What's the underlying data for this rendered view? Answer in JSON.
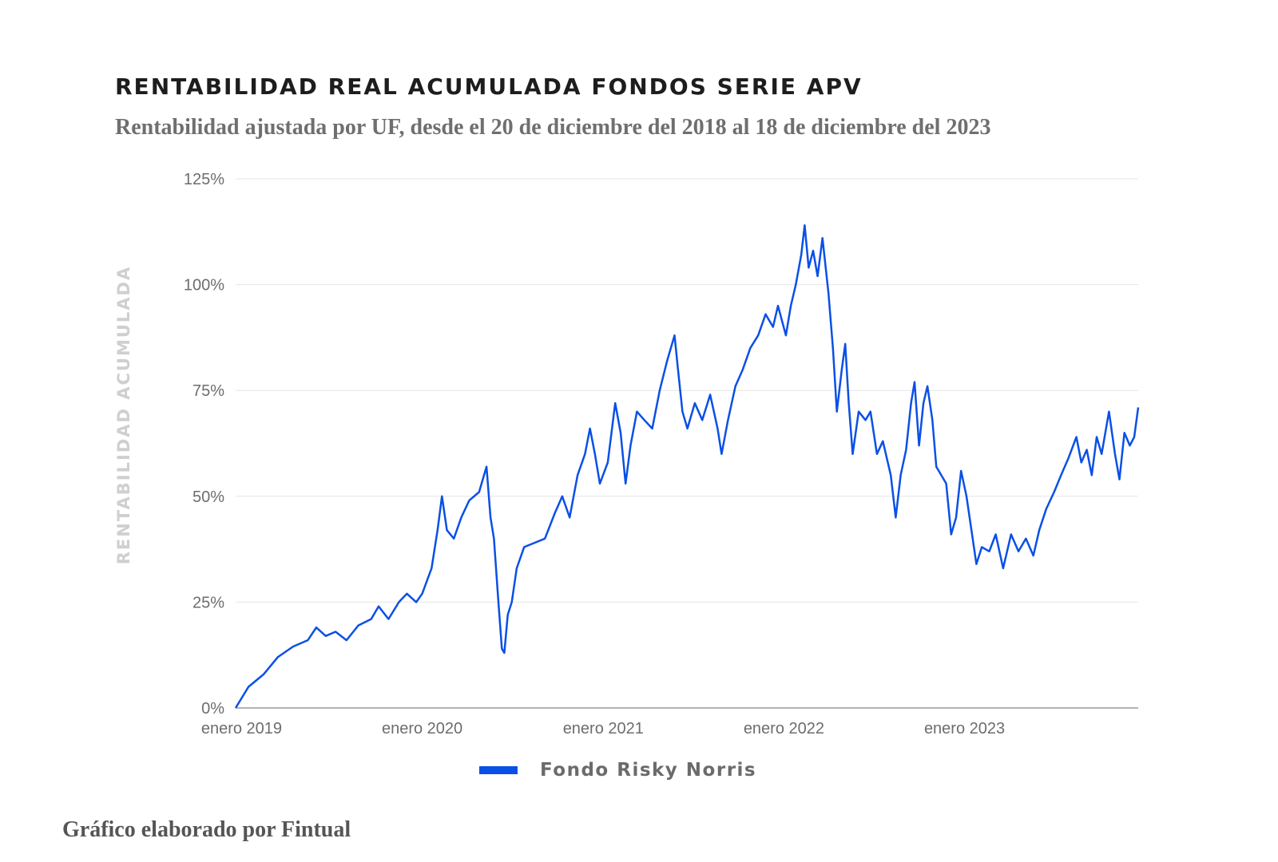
{
  "header": {
    "title": "RENTABILIDAD REAL ACUMULADA FONDOS SERIE APV",
    "subtitle": "Rentabilidad ajustada por UF, desde el 20 de diciembre del 2018 al 18 de diciembre del 2023"
  },
  "footer": {
    "credit": "Gráfico elaborado por Fintual"
  },
  "colors": {
    "series": "#0a50e6",
    "grid": "#e6e6e6",
    "axis": "#9a9a9a"
  },
  "chart_data": {
    "type": "line",
    "title": "RENTABILIDAD REAL ACUMULADA FONDOS SERIE APV",
    "subtitle": "Rentabilidad ajustada por UF, desde el 20 de diciembre del 2018 al 18 de diciembre del 2023",
    "ylabel": "RENTABILIDAD ACUMULADA",
    "xlabel": "",
    "ylim": [
      0,
      125
    ],
    "yticks": [
      0,
      25,
      50,
      75,
      100,
      125
    ],
    "ytick_labels": [
      "0%",
      "25%",
      "50%",
      "75%",
      "100%",
      "125%"
    ],
    "xlim": [
      "2018-12-20",
      "2023-12-18"
    ],
    "xticks": [
      "2019-01-01",
      "2020-01-01",
      "2021-01-01",
      "2022-01-01",
      "2023-01-01"
    ],
    "xtick_labels": [
      "enero 2019",
      "enero 2020",
      "enero 2021",
      "enero 2022",
      "enero 2023"
    ],
    "grid": true,
    "legend_position": "bottom",
    "series": [
      {
        "name": "Fondo Risky Norris",
        "color": "#0a50e6",
        "points": [
          [
            "2018-12-20",
            0
          ],
          [
            "2019-01-15",
            5
          ],
          [
            "2019-02-15",
            8
          ],
          [
            "2019-03-15",
            12
          ],
          [
            "2019-04-15",
            14.5
          ],
          [
            "2019-05-15",
            16
          ],
          [
            "2019-06-01",
            19
          ],
          [
            "2019-06-20",
            17
          ],
          [
            "2019-07-10",
            18
          ],
          [
            "2019-08-01",
            16
          ],
          [
            "2019-08-25",
            19.5
          ],
          [
            "2019-09-20",
            21
          ],
          [
            "2019-10-05",
            24
          ],
          [
            "2019-10-25",
            21
          ],
          [
            "2019-11-15",
            25
          ],
          [
            "2019-12-01",
            27
          ],
          [
            "2019-12-20",
            25
          ],
          [
            "2020-01-01",
            27
          ],
          [
            "2020-01-20",
            33
          ],
          [
            "2020-02-01",
            42
          ],
          [
            "2020-02-10",
            50
          ],
          [
            "2020-02-20",
            42
          ],
          [
            "2020-03-05",
            40
          ],
          [
            "2020-03-20",
            45
          ],
          [
            "2020-04-05",
            49
          ],
          [
            "2020-04-25",
            51
          ],
          [
            "2020-05-10",
            57
          ],
          [
            "2020-05-18",
            45
          ],
          [
            "2020-05-25",
            40
          ],
          [
            "2020-06-03",
            25
          ],
          [
            "2020-06-10",
            14
          ],
          [
            "2020-06-15",
            13
          ],
          [
            "2020-06-22",
            22
          ],
          [
            "2020-06-30",
            25
          ],
          [
            "2020-07-10",
            33
          ],
          [
            "2020-07-25",
            38
          ],
          [
            "2020-08-15",
            39
          ],
          [
            "2020-09-05",
            40
          ],
          [
            "2020-09-25",
            46
          ],
          [
            "2020-10-10",
            50
          ],
          [
            "2020-10-25",
            45
          ],
          [
            "2020-11-10",
            55
          ],
          [
            "2020-11-25",
            60
          ],
          [
            "2020-12-05",
            66
          ],
          [
            "2020-12-15",
            60
          ],
          [
            "2020-12-25",
            53
          ],
          [
            "2021-01-10",
            58
          ],
          [
            "2021-01-25",
            72
          ],
          [
            "2021-02-05",
            65
          ],
          [
            "2021-02-15",
            53
          ],
          [
            "2021-02-25",
            62
          ],
          [
            "2021-03-10",
            70
          ],
          [
            "2021-03-25",
            68
          ],
          [
            "2021-04-10",
            66
          ],
          [
            "2021-04-25",
            75
          ],
          [
            "2021-05-10",
            82
          ],
          [
            "2021-05-25",
            88
          ],
          [
            "2021-06-01",
            80
          ],
          [
            "2021-06-10",
            70
          ],
          [
            "2021-06-20",
            66
          ],
          [
            "2021-07-05",
            72
          ],
          [
            "2021-07-20",
            68
          ],
          [
            "2021-08-05",
            74
          ],
          [
            "2021-08-20",
            66
          ],
          [
            "2021-08-28",
            60
          ],
          [
            "2021-09-10",
            68
          ],
          [
            "2021-09-25",
            76
          ],
          [
            "2021-10-10",
            80
          ],
          [
            "2021-10-25",
            85
          ],
          [
            "2021-11-10",
            88
          ],
          [
            "2021-11-25",
            93
          ],
          [
            "2021-12-10",
            90
          ],
          [
            "2021-12-20",
            95
          ],
          [
            "2022-01-05",
            88
          ],
          [
            "2022-01-15",
            95
          ],
          [
            "2022-01-25",
            100
          ],
          [
            "2022-02-05",
            107
          ],
          [
            "2022-02-12",
            114
          ],
          [
            "2022-02-20",
            104
          ],
          [
            "2022-03-01",
            108
          ],
          [
            "2022-03-10",
            102
          ],
          [
            "2022-03-20",
            111
          ],
          [
            "2022-04-01",
            98
          ],
          [
            "2022-04-10",
            85
          ],
          [
            "2022-04-18",
            70
          ],
          [
            "2022-04-28",
            80
          ],
          [
            "2022-05-05",
            86
          ],
          [
            "2022-05-12",
            72
          ],
          [
            "2022-05-20",
            60
          ],
          [
            "2022-06-01",
            70
          ],
          [
            "2022-06-15",
            68
          ],
          [
            "2022-06-25",
            70
          ],
          [
            "2022-07-08",
            60
          ],
          [
            "2022-07-20",
            63
          ],
          [
            "2022-08-05",
            55
          ],
          [
            "2022-08-15",
            45
          ],
          [
            "2022-08-25",
            55
          ],
          [
            "2022-09-05",
            61
          ],
          [
            "2022-09-15",
            72
          ],
          [
            "2022-09-22",
            77
          ],
          [
            "2022-10-01",
            62
          ],
          [
            "2022-10-10",
            72
          ],
          [
            "2022-10-18",
            76
          ],
          [
            "2022-10-28",
            68
          ],
          [
            "2022-11-05",
            57
          ],
          [
            "2022-11-15",
            55
          ],
          [
            "2022-11-25",
            53
          ],
          [
            "2022-12-05",
            41
          ],
          [
            "2022-12-15",
            45
          ],
          [
            "2022-12-25",
            56
          ],
          [
            "2023-01-05",
            50
          ],
          [
            "2023-01-15",
            42
          ],
          [
            "2023-01-25",
            34
          ],
          [
            "2023-02-05",
            38
          ],
          [
            "2023-02-20",
            37
          ],
          [
            "2023-03-05",
            41
          ],
          [
            "2023-03-20",
            33
          ],
          [
            "2023-04-05",
            41
          ],
          [
            "2023-04-20",
            37
          ],
          [
            "2023-05-05",
            40
          ],
          [
            "2023-05-20",
            36
          ],
          [
            "2023-06-01",
            42
          ],
          [
            "2023-06-15",
            47
          ],
          [
            "2023-07-01",
            51
          ],
          [
            "2023-07-15",
            55
          ],
          [
            "2023-07-30",
            59
          ],
          [
            "2023-08-15",
            64
          ],
          [
            "2023-08-25",
            58
          ],
          [
            "2023-09-05",
            61
          ],
          [
            "2023-09-15",
            55
          ],
          [
            "2023-09-25",
            64
          ],
          [
            "2023-10-05",
            60
          ],
          [
            "2023-10-20",
            70
          ],
          [
            "2023-11-01",
            60
          ],
          [
            "2023-11-10",
            54
          ],
          [
            "2023-11-20",
            65
          ],
          [
            "2023-12-01",
            62
          ],
          [
            "2023-12-10",
            64
          ],
          [
            "2023-12-18",
            71
          ]
        ]
      }
    ]
  }
}
